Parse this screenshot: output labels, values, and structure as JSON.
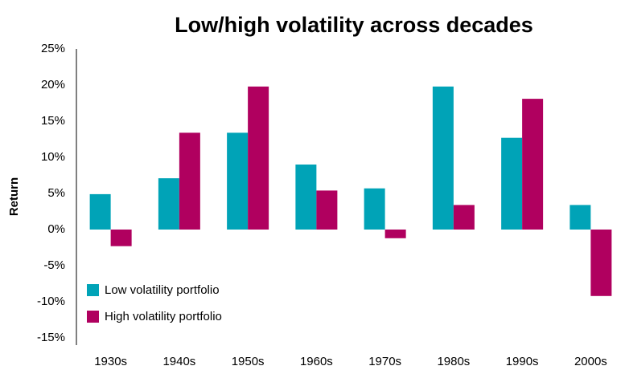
{
  "chart_data": {
    "type": "bar",
    "title": "Low/high volatility across decades",
    "y_label": "Return",
    "categories": [
      "1930s",
      "1940s",
      "1950s",
      "1960s",
      "1970s",
      "1980s",
      "1990s",
      "2000s"
    ],
    "series": [
      {
        "name": "Low volatility portfolio",
        "color": "#00a3b7",
        "values": [
          4.9,
          7.1,
          13.4,
          9.0,
          5.7,
          19.8,
          12.7,
          3.4
        ]
      },
      {
        "name": "High volatility portfolio",
        "color": "#b0005f",
        "values": [
          -2.3,
          13.4,
          19.8,
          5.4,
          -1.2,
          3.4,
          18.1,
          -9.2
        ]
      }
    ],
    "ylim": [
      -15,
      25
    ],
    "yticks": [
      {
        "value": -15,
        "label": "-15%"
      },
      {
        "value": -10,
        "label": "-10%"
      },
      {
        "value": -5,
        "label": "-5%"
      },
      {
        "value": 0,
        "label": "0%"
      },
      {
        "value": 5,
        "label": "5%"
      },
      {
        "value": 10,
        "label": "10%"
      },
      {
        "value": 15,
        "label": "15%"
      },
      {
        "value": 20,
        "label": "20%"
      },
      {
        "value": 25,
        "label": "25%"
      }
    ],
    "grid": false,
    "legend": "lower left"
  }
}
